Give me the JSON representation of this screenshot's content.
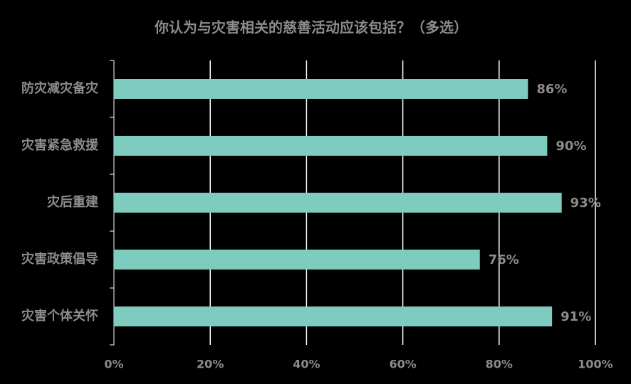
{
  "chart_data": {
    "type": "bar",
    "orientation": "horizontal",
    "title": "你认为与灾害相关的慈善活动应该包括？（多选）",
    "categories": [
      "防灾减灾备灾",
      "灾害紧急救援",
      "灾后重建",
      "灾害政策倡导",
      "灾害个体关怀"
    ],
    "values": [
      86,
      90,
      93,
      76,
      91
    ],
    "value_labels": [
      "86%",
      "90%",
      "93%",
      "76%",
      "91%"
    ],
    "color": "#7ecbbf",
    "xlim": [
      0,
      100
    ],
    "xticks": [
      {
        "value": 0,
        "label": "0%"
      },
      {
        "value": 20,
        "label": "20%"
      },
      {
        "value": 40,
        "label": "40%"
      },
      {
        "value": 60,
        "label": "60%"
      },
      {
        "value": 80,
        "label": "80%"
      },
      {
        "value": 100,
        "label": "100%"
      }
    ],
    "grid": true
  }
}
